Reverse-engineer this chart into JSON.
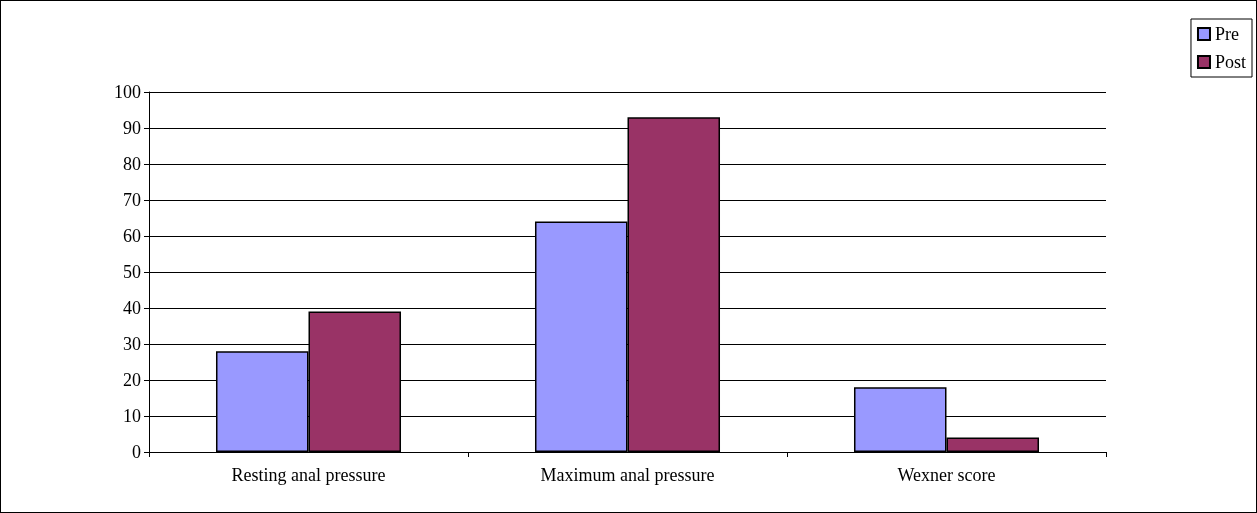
{
  "chart_data": {
    "type": "bar",
    "categories": [
      "Resting anal pressure",
      "Maximum anal pressure",
      "Wexner score"
    ],
    "series": [
      {
        "name": "Pre",
        "color": "#9999ff",
        "values": [
          28,
          64,
          18
        ]
      },
      {
        "name": "Post",
        "color": "#993366",
        "values": [
          39,
          93,
          4
        ]
      }
    ],
    "ylim": [
      0,
      100
    ],
    "yticks": [
      0,
      10,
      20,
      30,
      40,
      50,
      60,
      70,
      80,
      90,
      100
    ],
    "grid": "y",
    "legend": "top right"
  }
}
